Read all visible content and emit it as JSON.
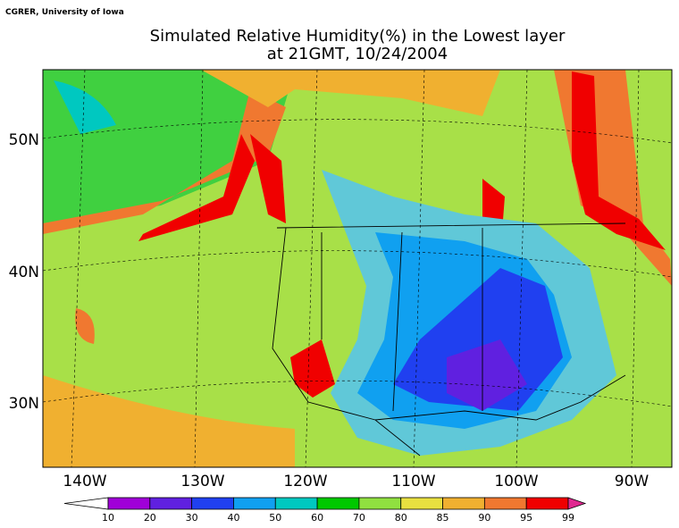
{
  "credit": "CGRER, University of Iowa",
  "title": [
    "Simulated Relative Humidity(%) in the Lowest layer",
    "at 21GMT, 10/24/2004"
  ],
  "lat_labels": [
    "50N",
    "40N",
    "30N"
  ],
  "lon_labels": [
    "140W",
    "130W",
    "120W",
    "110W",
    "100W",
    "90W"
  ],
  "colorbar": {
    "labels": [
      "10",
      "20",
      "30",
      "40",
      "50",
      "60",
      "70",
      "80",
      "85",
      "90",
      "95",
      "99"
    ],
    "colors": [
      "#ffffff",
      "#a000d8",
      "#6020e0",
      "#2040f0",
      "#10a0f0",
      "#00c8c0",
      "#00c800",
      "#90e040",
      "#e8e040",
      "#f0b030",
      "#f07830",
      "#f00000",
      "#e02890"
    ]
  }
}
